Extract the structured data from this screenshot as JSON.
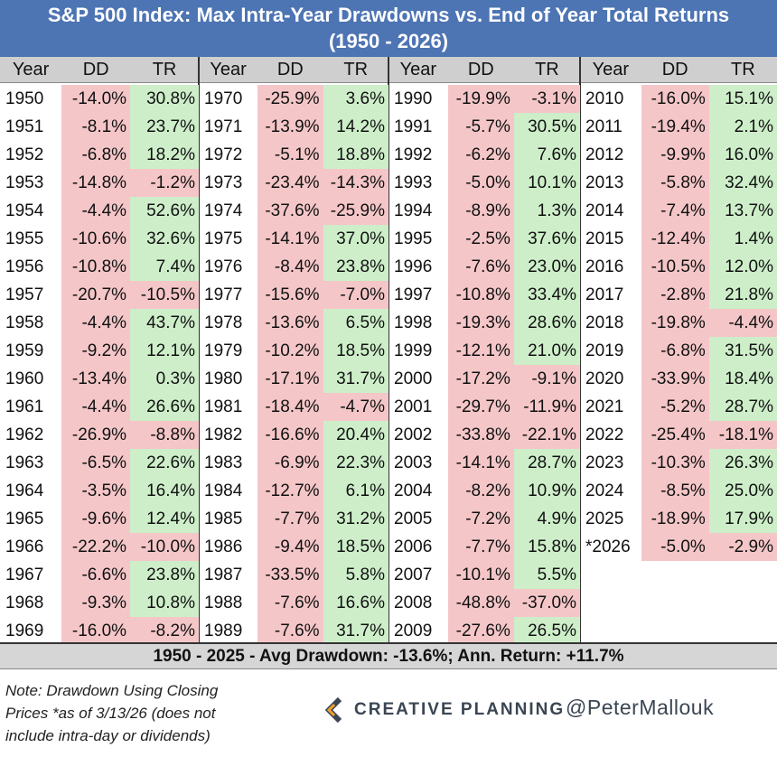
{
  "title_line1": "S&P 500 Index: Max Intra-Year Drawdowns vs. End of Year Total Returns",
  "title_line2": "(1950 - 2026)",
  "headers": {
    "year": "Year",
    "dd": "DD",
    "tr": "TR"
  },
  "colors": {
    "header_bg": "#4d74b3",
    "negative": "#f4c6c8",
    "positive": "#cdeec9"
  },
  "chart_data": {
    "type": "table",
    "columns": [
      "Year",
      "DD",
      "TR"
    ],
    "rows": [
      [
        "1950",
        "-14.0%",
        "30.8%"
      ],
      [
        "1951",
        "-8.1%",
        "23.7%"
      ],
      [
        "1952",
        "-6.8%",
        "18.2%"
      ],
      [
        "1953",
        "-14.8%",
        "-1.2%"
      ],
      [
        "1954",
        "-4.4%",
        "52.6%"
      ],
      [
        "1955",
        "-10.6%",
        "32.6%"
      ],
      [
        "1956",
        "-10.8%",
        "7.4%"
      ],
      [
        "1957",
        "-20.7%",
        "-10.5%"
      ],
      [
        "1958",
        "-4.4%",
        "43.7%"
      ],
      [
        "1959",
        "-9.2%",
        "12.1%"
      ],
      [
        "1960",
        "-13.4%",
        "0.3%"
      ],
      [
        "1961",
        "-4.4%",
        "26.6%"
      ],
      [
        "1962",
        "-26.9%",
        "-8.8%"
      ],
      [
        "1963",
        "-6.5%",
        "22.6%"
      ],
      [
        "1964",
        "-3.5%",
        "16.4%"
      ],
      [
        "1965",
        "-9.6%",
        "12.4%"
      ],
      [
        "1966",
        "-22.2%",
        "-10.0%"
      ],
      [
        "1967",
        "-6.6%",
        "23.8%"
      ],
      [
        "1968",
        "-9.3%",
        "10.8%"
      ],
      [
        "1969",
        "-16.0%",
        "-8.2%"
      ],
      [
        "1970",
        "-25.9%",
        "3.6%"
      ],
      [
        "1971",
        "-13.9%",
        "14.2%"
      ],
      [
        "1972",
        "-5.1%",
        "18.8%"
      ],
      [
        "1973",
        "-23.4%",
        "-14.3%"
      ],
      [
        "1974",
        "-37.6%",
        "-25.9%"
      ],
      [
        "1975",
        "-14.1%",
        "37.0%"
      ],
      [
        "1976",
        "-8.4%",
        "23.8%"
      ],
      [
        "1977",
        "-15.6%",
        "-7.0%"
      ],
      [
        "1978",
        "-13.6%",
        "6.5%"
      ],
      [
        "1979",
        "-10.2%",
        "18.5%"
      ],
      [
        "1980",
        "-17.1%",
        "31.7%"
      ],
      [
        "1981",
        "-18.4%",
        "-4.7%"
      ],
      [
        "1982",
        "-16.6%",
        "20.4%"
      ],
      [
        "1983",
        "-6.9%",
        "22.3%"
      ],
      [
        "1984",
        "-12.7%",
        "6.1%"
      ],
      [
        "1985",
        "-7.7%",
        "31.2%"
      ],
      [
        "1986",
        "-9.4%",
        "18.5%"
      ],
      [
        "1987",
        "-33.5%",
        "5.8%"
      ],
      [
        "1988",
        "-7.6%",
        "16.6%"
      ],
      [
        "1989",
        "-7.6%",
        "31.7%"
      ],
      [
        "1990",
        "-19.9%",
        "-3.1%"
      ],
      [
        "1991",
        "-5.7%",
        "30.5%"
      ],
      [
        "1992",
        "-6.2%",
        "7.6%"
      ],
      [
        "1993",
        "-5.0%",
        "10.1%"
      ],
      [
        "1994",
        "-8.9%",
        "1.3%"
      ],
      [
        "1995",
        "-2.5%",
        "37.6%"
      ],
      [
        "1996",
        "-7.6%",
        "23.0%"
      ],
      [
        "1997",
        "-10.8%",
        "33.4%"
      ],
      [
        "1998",
        "-19.3%",
        "28.6%"
      ],
      [
        "1999",
        "-12.1%",
        "21.0%"
      ],
      [
        "2000",
        "-17.2%",
        "-9.1%"
      ],
      [
        "2001",
        "-29.7%",
        "-11.9%"
      ],
      [
        "2002",
        "-33.8%",
        "-22.1%"
      ],
      [
        "2003",
        "-14.1%",
        "28.7%"
      ],
      [
        "2004",
        "-8.2%",
        "10.9%"
      ],
      [
        "2005",
        "-7.2%",
        "4.9%"
      ],
      [
        "2006",
        "-7.7%",
        "15.8%"
      ],
      [
        "2007",
        "-10.1%",
        "5.5%"
      ],
      [
        "2008",
        "-48.8%",
        "-37.0%"
      ],
      [
        "2009",
        "-27.6%",
        "26.5%"
      ],
      [
        "2010",
        "-16.0%",
        "15.1%"
      ],
      [
        "2011",
        "-19.4%",
        "2.1%"
      ],
      [
        "2012",
        "-9.9%",
        "16.0%"
      ],
      [
        "2013",
        "-5.8%",
        "32.4%"
      ],
      [
        "2014",
        "-7.4%",
        "13.7%"
      ],
      [
        "2015",
        "-12.4%",
        "1.4%"
      ],
      [
        "2016",
        "-10.5%",
        "12.0%"
      ],
      [
        "2017",
        "-2.8%",
        "21.8%"
      ],
      [
        "2018",
        "-19.8%",
        "-4.4%"
      ],
      [
        "2019",
        "-6.8%",
        "31.5%"
      ],
      [
        "2020",
        "-33.9%",
        "18.4%"
      ],
      [
        "2021",
        "-5.2%",
        "28.7%"
      ],
      [
        "2022",
        "-25.4%",
        "-18.1%"
      ],
      [
        "2023",
        "-10.3%",
        "26.3%"
      ],
      [
        "2024",
        "-8.5%",
        "25.0%"
      ],
      [
        "2025",
        "-18.9%",
        "17.9%"
      ],
      [
        "*2026",
        "-5.0%",
        "-2.9%"
      ]
    ]
  },
  "summary": "1950 - 2025 - Avg Drawdown: -13.6%; Ann. Return: +11.7%",
  "note_lines": [
    "Note: Drawdown Using Closing",
    "Prices *as of 3/13/26 (does not",
    "include intra-day or dividends)"
  ],
  "logo_text": "CREATIVE PLANNING",
  "handle": "@PeterMallouk"
}
